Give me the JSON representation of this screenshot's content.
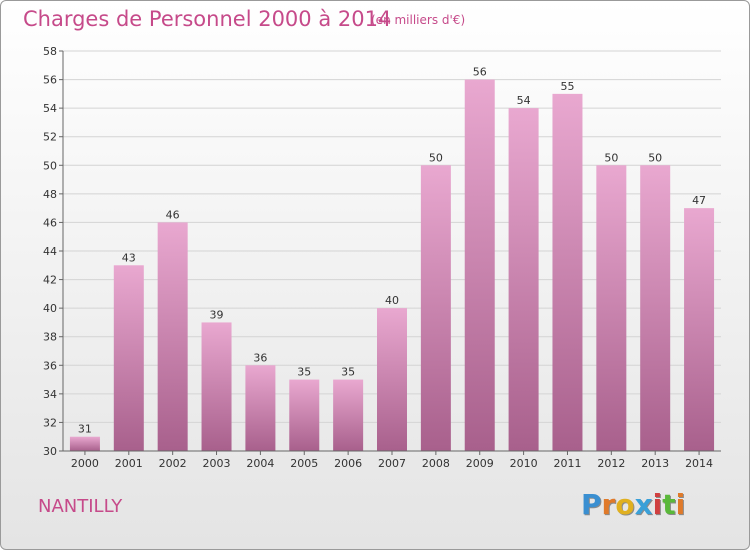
{
  "header": {
    "title": "Charges de Personnel 2000 à 2014",
    "subtitle": "(en milliers d'€)"
  },
  "footer": {
    "city": "NANTILLY",
    "logo_text": "Proxiti"
  },
  "colors": {
    "accent": "#c64a8a",
    "bar_top": "#e9a8d0",
    "bar_bottom": "#a8608c",
    "grid": "#d4d4d4"
  },
  "chart_data": {
    "type": "bar",
    "title": "Charges de Personnel 2000 à 2014",
    "subtitle": "(en milliers d'€)",
    "xlabel": "",
    "ylabel": "",
    "categories": [
      "2000",
      "2001",
      "2002",
      "2003",
      "2004",
      "2005",
      "2006",
      "2007",
      "2008",
      "2009",
      "2010",
      "2011",
      "2012",
      "2013",
      "2014"
    ],
    "values": [
      31,
      43,
      46,
      39,
      36,
      35,
      35,
      40,
      50,
      56,
      54,
      55,
      50,
      50,
      47
    ],
    "ylim": [
      30,
      58
    ],
    "yticks": [
      30,
      32,
      34,
      36,
      38,
      40,
      42,
      44,
      46,
      48,
      50,
      52,
      54,
      56,
      58
    ],
    "grid": true,
    "legend": "none"
  }
}
